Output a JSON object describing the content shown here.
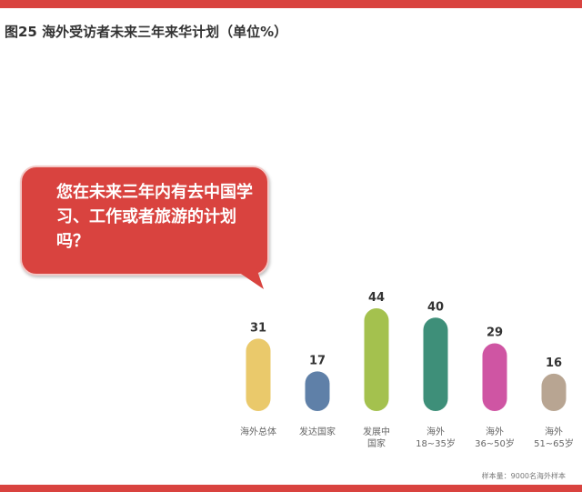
{
  "title": "图25 海外受访者未来三年来华计划（单位%）",
  "bubble_text": "您在未来三年内有去中国学习、工作或者旅游的计划吗？",
  "footnote": "样本量：9000名海外样本",
  "colors": {
    "accent": "#d9433f"
  },
  "chart_data": {
    "type": "bar",
    "categories": [
      [
        "海外总体"
      ],
      [
        "发达国家"
      ],
      [
        "发展中",
        "国家"
      ],
      [
        "海外",
        "18~35岁"
      ],
      [
        "海外",
        "36~50岁"
      ],
      [
        "海外",
        "51~65岁"
      ]
    ],
    "values": [
      31,
      17,
      44,
      40,
      29,
      16
    ],
    "colors": [
      "#eac96b",
      "#5f80a8",
      "#a4c14e",
      "#3e8f79",
      "#cf55a3",
      "#b8a592"
    ],
    "ylim": [
      0,
      44
    ],
    "legend": "none",
    "grid": false
  }
}
